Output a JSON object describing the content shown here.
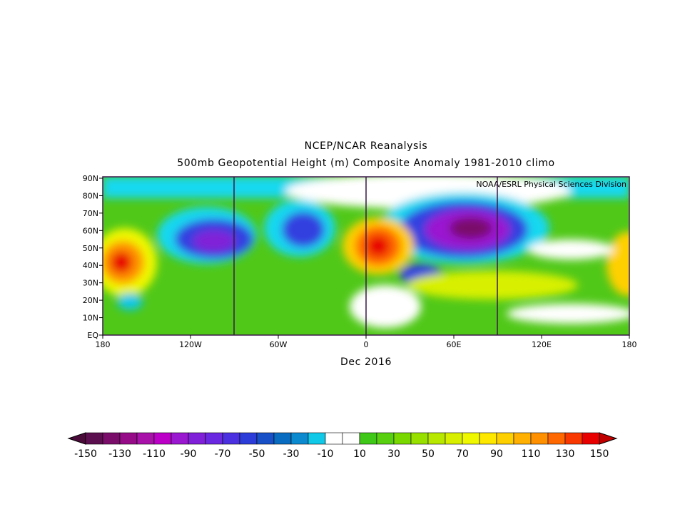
{
  "map": {
    "title": "NCEP/NCAR Reanalysis",
    "subtitle": "500mb Geopotential Height (m) Composite Anomaly 1981-2010 climo",
    "credit": "NOAA/ESRL Physical Sciences Division",
    "xticks": [
      "180",
      "120W",
      "60W",
      "0",
      "60E",
      "120E",
      "180"
    ],
    "yticks": [
      "90N",
      "80N",
      "70N",
      "60N",
      "50N",
      "40N",
      "30N",
      "20N",
      "10N",
      "EQ"
    ],
    "date": "Dec 2016",
    "colorbar": {
      "labels": [
        -150,
        -130,
        -110,
        -90,
        -70,
        -50,
        -30,
        -10,
        10,
        30,
        50,
        70,
        90,
        110,
        130,
        150
      ],
      "low_color": "#4a0a3a",
      "high_color": "#c00000",
      "colors": [
        "#5c0f4f",
        "#7a0d6a",
        "#960c88",
        "#a812a8",
        "#bd00c8",
        "#9a18d0",
        "#8020d8",
        "#6a28e0",
        "#4a30e0",
        "#2c3cd8",
        "#1850c8",
        "#0a6cc0",
        "#0c8ad0",
        "#10c8e8",
        "#ffffff",
        "#ffffff",
        "#40c818",
        "#58d010",
        "#78d800",
        "#98e000",
        "#b8e800",
        "#d8f000",
        "#f0f800",
        "#ffe800",
        "#ffd000",
        "#ffb000",
        "#ff9000",
        "#ff6800",
        "#f83800",
        "#e80000"
      ]
    }
  }
}
